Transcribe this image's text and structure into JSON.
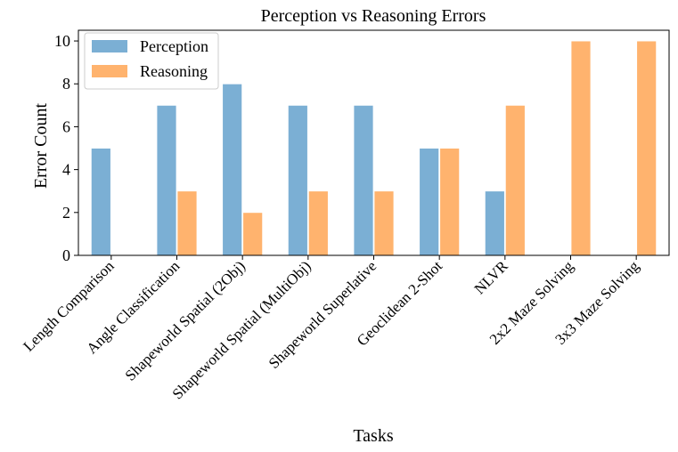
{
  "chart_data": {
    "type": "bar",
    "title": "Perception vs Reasoning Errors",
    "xlabel": "Tasks",
    "ylabel": "Error Count",
    "ylim": [
      0,
      10.5
    ],
    "yticks": [
      0,
      2,
      4,
      6,
      8,
      10
    ],
    "grid": false,
    "legend": "top-left",
    "categories": [
      "Length Comparison",
      "Angle Classification",
      "Shapeworld Spatial (2Obj)",
      "Shapeworld Spatial (MultiObj)",
      "Shapeworld Superlative",
      "Geoclidean 2-Shot",
      "NLVR",
      "2x2 Maze Solving",
      "3x3 Maze Solving"
    ],
    "series": [
      {
        "name": "Perception",
        "color": "#7bafd4",
        "values": [
          5,
          7,
          8,
          7,
          7,
          5,
          3,
          0,
          0
        ]
      },
      {
        "name": "Reasoning",
        "color": "#ffb36e",
        "values": [
          0,
          3,
          2,
          3,
          3,
          5,
          7,
          10,
          10
        ]
      }
    ]
  }
}
